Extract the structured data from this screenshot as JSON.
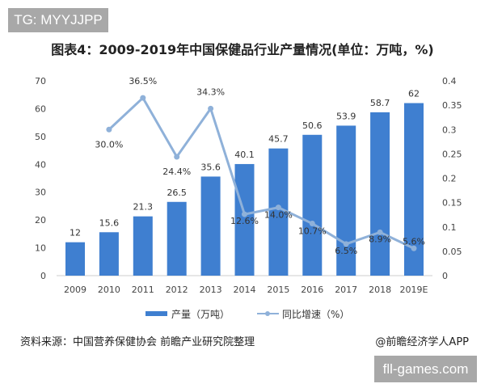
{
  "watermark_top": "TG: MYYJJPP",
  "watermark_bottom": "fll-games.com",
  "source": "资料来源：中国营养保健协会 前瞻产业研究院整理",
  "brand": "@前瞻经济学人APP",
  "chart_data": {
    "type": "bar+line",
    "title": "图表4：2009-2019年中国保健品行业产量情况(单位：万吨，%)",
    "categories": [
      "2009",
      "2010",
      "2011",
      "2012",
      "2013",
      "2014",
      "2015",
      "2016",
      "2017",
      "2018",
      "2019E"
    ],
    "series": [
      {
        "name": "产量（万吨）",
        "type": "bar",
        "axis": "left",
        "color": "#3f7fd0",
        "values": [
          12,
          15.6,
          21.3,
          26.5,
          35.6,
          40.1,
          45.7,
          50.6,
          53.9,
          58.7,
          62
        ],
        "labels": [
          "12",
          "15.6",
          "21.3",
          "26.5",
          "35.6",
          "40.1",
          "45.7",
          "50.6",
          "53.9",
          "58.7",
          "62"
        ]
      },
      {
        "name": "同比增速（%）",
        "type": "line",
        "axis": "right",
        "color": "#8fb1d9",
        "values": [
          null,
          0.3,
          0.365,
          0.244,
          0.343,
          0.126,
          0.14,
          0.107,
          0.065,
          0.089,
          0.056
        ],
        "labels": [
          "",
          "30.0%",
          "36.5%",
          "24.4%",
          "34.3%",
          "12.6%",
          "14.0%",
          "10.7%",
          "6.5%",
          "8.9%",
          "5.6%"
        ]
      }
    ],
    "y_left": {
      "range": [
        0,
        70
      ],
      "ticks": [
        "0",
        "10",
        "20",
        "30",
        "40",
        "50",
        "60",
        "70"
      ]
    },
    "y_right": {
      "range": [
        0,
        0.4
      ],
      "ticks": [
        "0",
        "0.05",
        "0.1",
        "0.15",
        "0.2",
        "0.25",
        "0.3",
        "0.35",
        "0.4"
      ]
    },
    "grid": false,
    "legend": "bottom"
  }
}
